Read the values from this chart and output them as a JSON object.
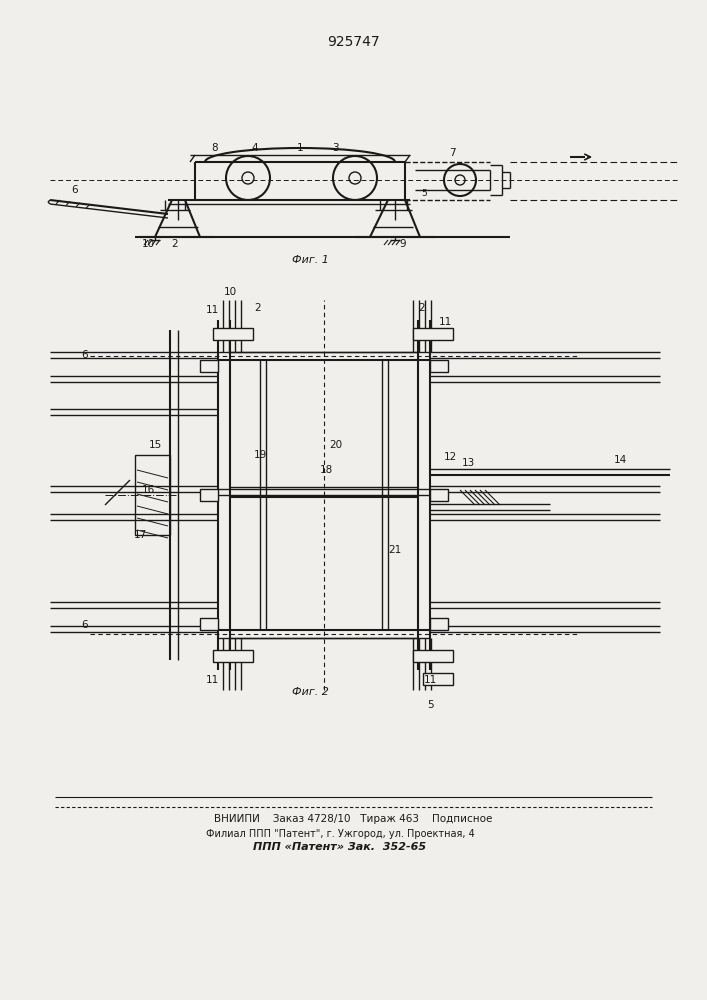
{
  "title": "925747",
  "fig1_label": "Фиг. 1",
  "fig2_label": "Фиг. 2",
  "footer_line1": "ВНИИПИ    Заказ 4728/10   Тираж 463    Подписное",
  "footer_line2": "Филиал ППП \"Патент\", г. Ужгород, ул. Проектная, 4",
  "footer_line3": "ППП «Патент» Зак.  352-65",
  "bg_color": "#f0efeb",
  "line_color": "#1a1a1a",
  "font_size_title": 10,
  "font_size_label": 7.5,
  "font_size_footer": 7
}
